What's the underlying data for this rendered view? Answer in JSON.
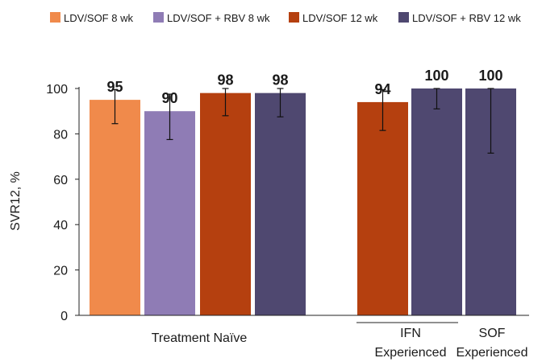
{
  "chart_data": {
    "type": "bar",
    "title": "",
    "xlabel": "",
    "ylabel": "SVR12, %",
    "ylim": [
      0,
      100
    ],
    "yticks": [
      0,
      20,
      40,
      60,
      80,
      100
    ],
    "legend_position": "top",
    "series": [
      {
        "name": "LDV/SOF 8 wk",
        "color": "#f08a4b"
      },
      {
        "name": "LDV/SOF + RBV 8 wk",
        "color": "#8f7cb5"
      },
      {
        "name": "LDV/SOF 12 wk",
        "color": "#b5400f"
      },
      {
        "name": "LDV/SOF + RBV 12 wk",
        "color": "#4f4870"
      }
    ],
    "bars": [
      {
        "group": "Treatment Naïve",
        "series": 0,
        "value": 95,
        "label": "95",
        "err_low": 84.5,
        "err_high": 99.5
      },
      {
        "group": "Treatment Naïve",
        "series": 1,
        "value": 90,
        "label": "90",
        "err_low": 77.5,
        "err_high": 97.5
      },
      {
        "group": "Treatment Naïve",
        "series": 2,
        "value": 98,
        "label": "98",
        "err_low": 88,
        "err_high": 100
      },
      {
        "group": "Treatment Naïve",
        "series": 3,
        "value": 98,
        "label": "98",
        "err_low": 87.5,
        "err_high": 100
      },
      {
        "group": "IFN Experienced",
        "series": 2,
        "value": 94,
        "label": "94",
        "err_low": 81.5,
        "err_high": 99.5
      },
      {
        "group": "IFN Experienced",
        "series": 3,
        "value": 100,
        "label": "100",
        "err_low": 91,
        "err_high": 100
      },
      {
        "group": "SOF Experienced",
        "series": 3,
        "value": 100,
        "label": "100",
        "err_low": 71.5,
        "err_high": 100
      }
    ],
    "groups": [
      {
        "label": "Treatment Naïve"
      },
      {
        "label": "IFN Experienced"
      },
      {
        "label": "SOF Experienced"
      }
    ]
  }
}
